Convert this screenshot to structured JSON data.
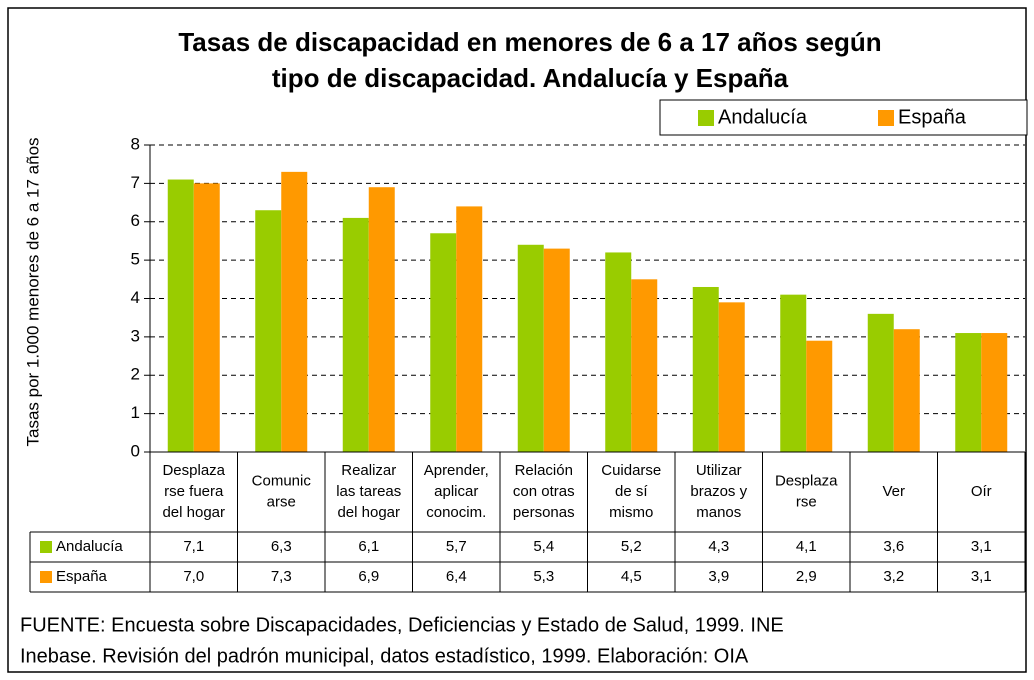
{
  "chart_data": {
    "type": "bar",
    "title": "Tasas de discapacidad en menores de 6 a 17 años según\ntipo de discapacidad. Andalucía y España",
    "ylabel": "Tasas por 1.000 menores de 6 a 17 años",
    "categories": [
      "Desplaza\nrse fuera\ndel hogar",
      "Comunic\narse",
      "Realizar\nlas tareas\ndel hogar",
      "Aprender,\naplicar\nconocim.",
      "Relación\ncon otras\npersonas",
      "Cuidarse\nde sí\nmismo",
      "Utilizar\nbrazos y\nmanos",
      "Desplaza\nrse",
      "Ver",
      "Oír"
    ],
    "series": [
      {
        "name": "Andalucía",
        "color": "#99cc00",
        "values": [
          7.1,
          6.3,
          6.1,
          5.7,
          5.4,
          5.2,
          4.3,
          4.1,
          3.6,
          3.1
        ],
        "value_labels": [
          "7,1",
          "6,3",
          "6,1",
          "5,7",
          "5,4",
          "5,2",
          "4,3",
          "4,1",
          "3,6",
          "3,1"
        ]
      },
      {
        "name": "España",
        "color": "#ff9900",
        "values": [
          7.0,
          7.3,
          6.9,
          6.4,
          5.3,
          4.5,
          3.9,
          2.9,
          3.2,
          3.1
        ],
        "value_labels": [
          "7,0",
          "7,3",
          "6,9",
          "6,4",
          "5,3",
          "4,5",
          "3,9",
          "2,9",
          "3,2",
          "3,1"
        ]
      }
    ],
    "ylim": [
      0,
      8
    ],
    "yticks": [
      0,
      1,
      2,
      3,
      4,
      5,
      6,
      7,
      8
    ],
    "grid": true,
    "legend": "top-right",
    "footnote": "FUENTE: Encuesta sobre Discapacidades, Deficiencias y Estado de Salud, 1999. INE\nInebase. Revisión del padrón municipal, datos estadístico, 1999. Elaboración: OIA"
  }
}
